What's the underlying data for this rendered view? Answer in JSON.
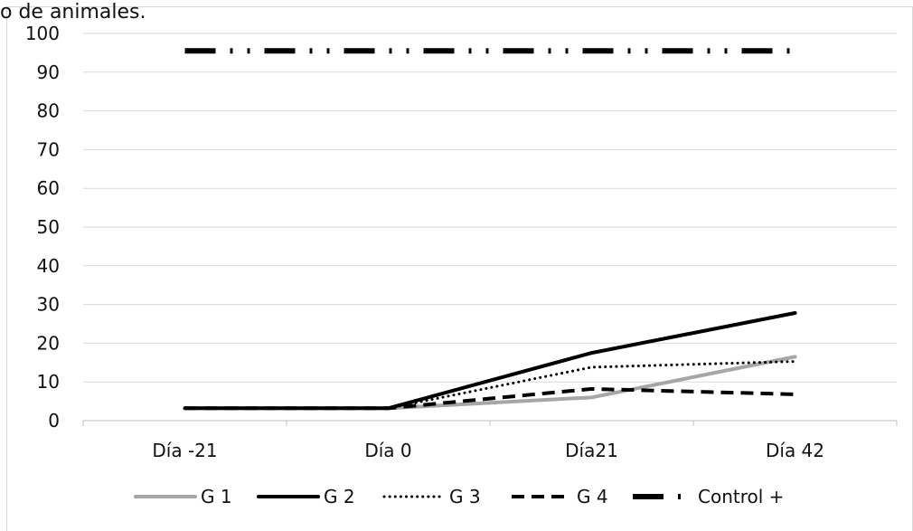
{
  "caption": "o de animales.",
  "chart_data": {
    "type": "line",
    "categories": [
      "Día -21",
      "Día 0",
      "Día21",
      "Día 42"
    ],
    "ylim": [
      0,
      100
    ],
    "y_ticks": [
      0,
      10,
      20,
      30,
      40,
      50,
      60,
      70,
      80,
      90,
      100
    ],
    "grid": true,
    "legend_position": "bottom",
    "series": [
      {
        "name": "G 1",
        "values": [
          3.2,
          3.2,
          6.0,
          16.5
        ],
        "color": "#A6A6A6",
        "style": "solid"
      },
      {
        "name": "G 2",
        "values": [
          3.2,
          3.2,
          17.5,
          27.8
        ],
        "color": "#000000",
        "style": "solid"
      },
      {
        "name": "G 3",
        "values": [
          3.2,
          3.2,
          13.8,
          15.3
        ],
        "color": "#000000",
        "style": "dotted"
      },
      {
        "name": "G 4",
        "values": [
          3.2,
          3.2,
          8.2,
          6.8
        ],
        "color": "#000000",
        "style": "dashed"
      },
      {
        "name": "Control +",
        "values": [
          95.5,
          95.5,
          95.5,
          95.5
        ],
        "color": "#000000",
        "style": "long-dash-dot-dot"
      }
    ]
  }
}
